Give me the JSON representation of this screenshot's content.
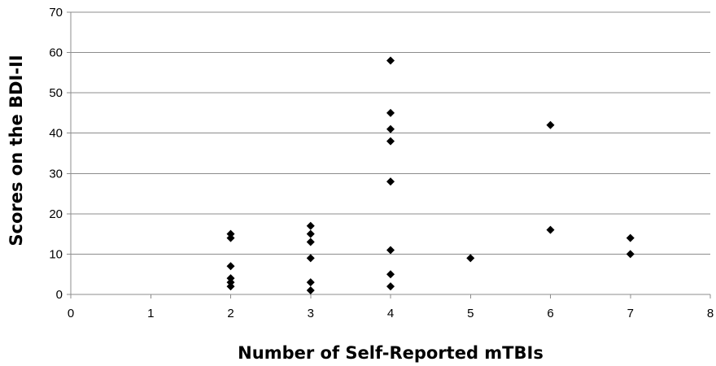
{
  "chart_data": {
    "type": "scatter",
    "title": "",
    "xlabel": "Number of Self-Reported mTBIs",
    "ylabel": "Scores on the BDI-II",
    "xlim": [
      0,
      8
    ],
    "ylim": [
      0,
      70
    ],
    "xticks": [
      "0",
      "1",
      "2",
      "3",
      "4",
      "5",
      "6",
      "7",
      "8"
    ],
    "yticks": [
      "0",
      "10",
      "20",
      "30",
      "40",
      "50",
      "60",
      "70"
    ],
    "grid": "horizontal",
    "legend": "none",
    "marker": "diamond",
    "marker_color": "#000000",
    "points": [
      {
        "x": 2,
        "y": 15
      },
      {
        "x": 2,
        "y": 14
      },
      {
        "x": 2,
        "y": 7
      },
      {
        "x": 2,
        "y": 4
      },
      {
        "x": 2,
        "y": 3
      },
      {
        "x": 2,
        "y": 2
      },
      {
        "x": 3,
        "y": 17
      },
      {
        "x": 3,
        "y": 15
      },
      {
        "x": 3,
        "y": 13
      },
      {
        "x": 3,
        "y": 9
      },
      {
        "x": 3,
        "y": 3
      },
      {
        "x": 3,
        "y": 1
      },
      {
        "x": 4,
        "y": 58
      },
      {
        "x": 4,
        "y": 45
      },
      {
        "x": 4,
        "y": 41
      },
      {
        "x": 4,
        "y": 38
      },
      {
        "x": 4,
        "y": 28
      },
      {
        "x": 4,
        "y": 11
      },
      {
        "x": 4,
        "y": 5
      },
      {
        "x": 4,
        "y": 2
      },
      {
        "x": 5,
        "y": 9
      },
      {
        "x": 6,
        "y": 42
      },
      {
        "x": 6,
        "y": 16
      },
      {
        "x": 7,
        "y": 14
      },
      {
        "x": 7,
        "y": 10
      }
    ]
  }
}
